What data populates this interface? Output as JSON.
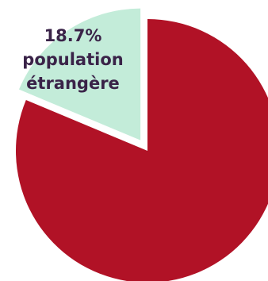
{
  "chart_data": {
    "type": "pie",
    "slices": [
      {
        "label_lines": [
          "18.7%",
          "population",
          "étrangère"
        ],
        "value": 18.7,
        "color": "#c3ecd9",
        "exploded": true
      },
      {
        "label_lines": [],
        "value": 81.3,
        "color": "#b11226",
        "exploded": false
      }
    ],
    "title": "",
    "legend": "none"
  }
}
